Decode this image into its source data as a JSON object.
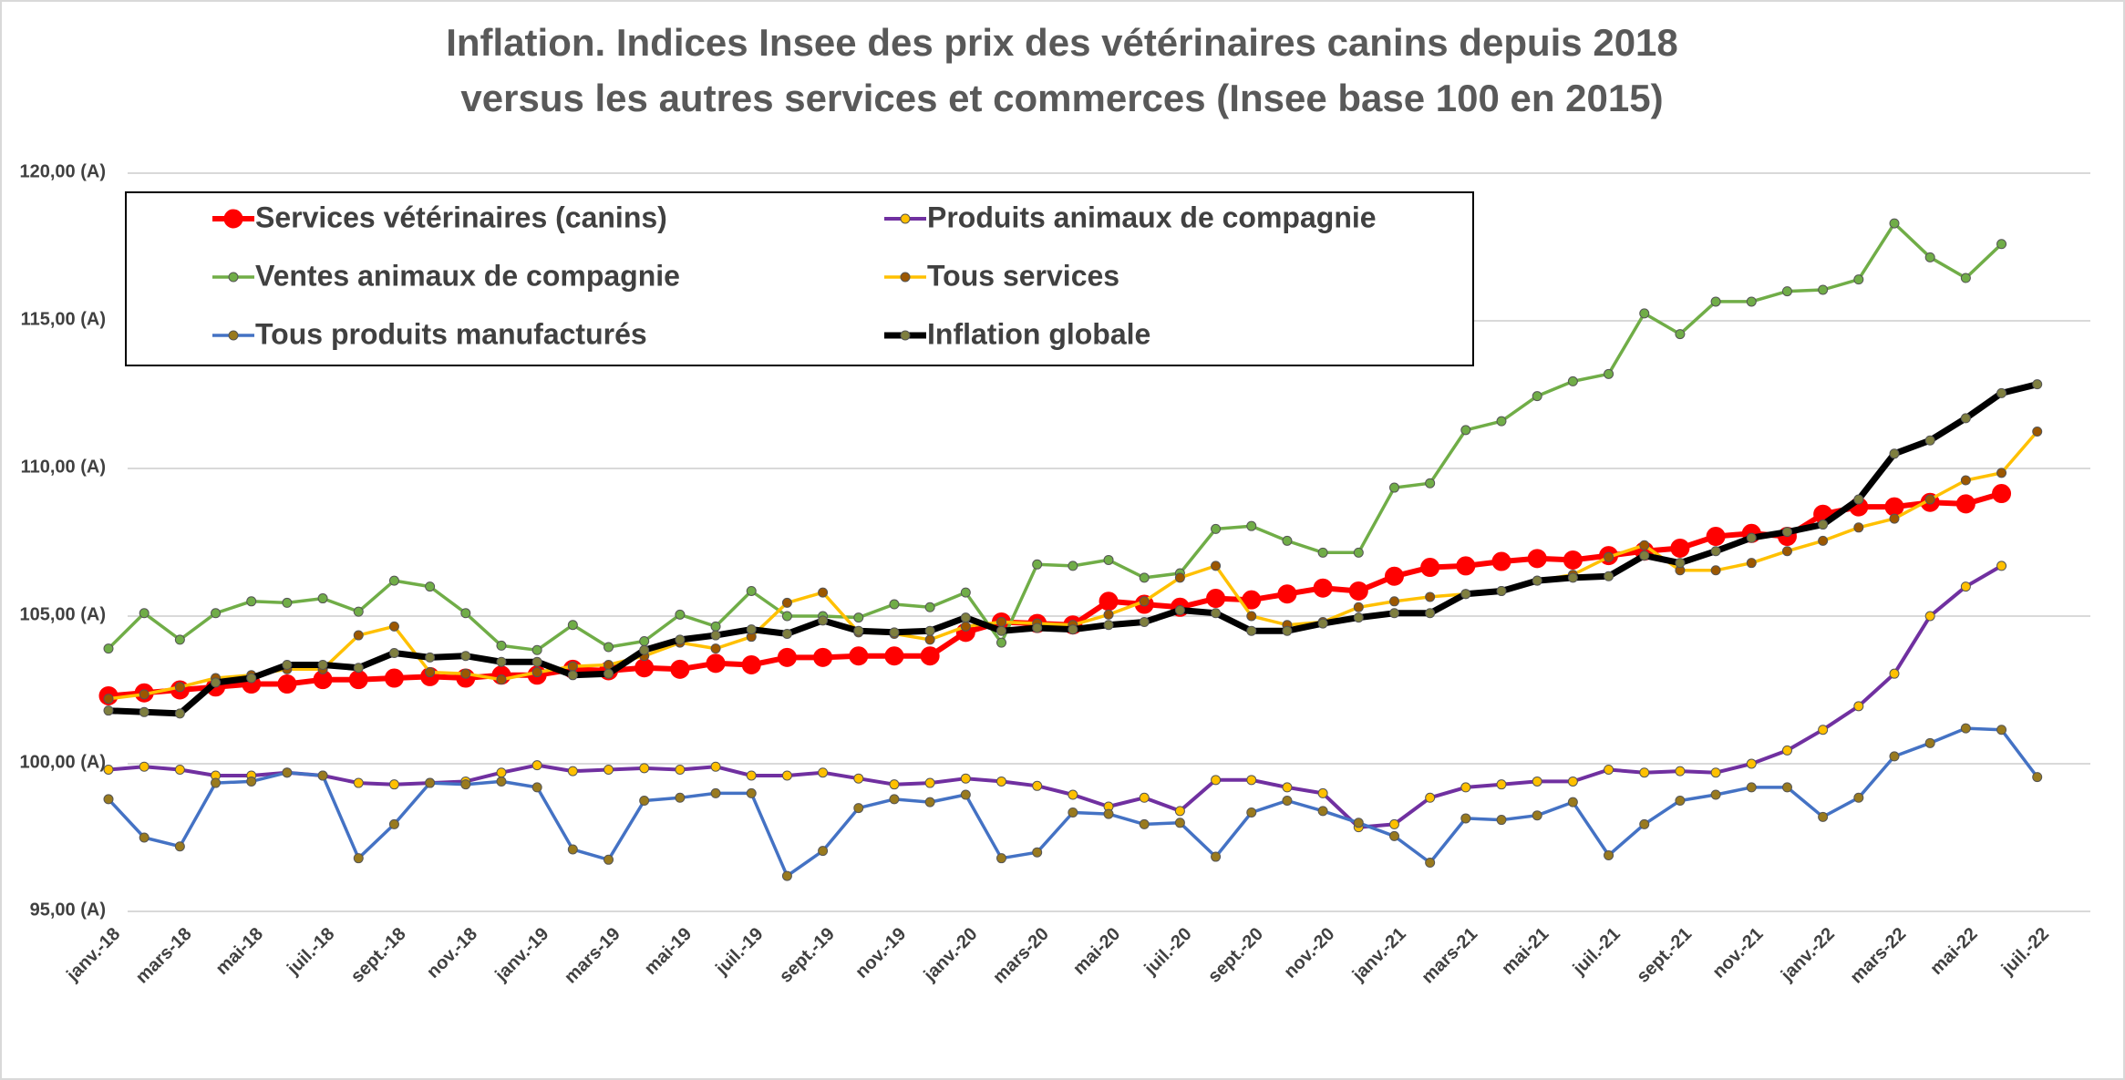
{
  "chart_data": {
    "type": "line",
    "title": [
      "Inflation. Indices Insee des prix des vétérinaires canins depuis 2018",
      "versus les autres services et commerces (Insee base 100 en 2015)"
    ],
    "categories": [
      "janv.-18",
      null,
      "mars-18",
      null,
      "mai-18",
      null,
      "juil.-18",
      null,
      "sept.-18",
      null,
      "nov.-18",
      null,
      "janv.-19",
      null,
      "mars-19",
      null,
      "mai-19",
      null,
      "juil.-19",
      null,
      "sept.-19",
      null,
      "nov.-19",
      null,
      "janv.-20",
      null,
      "mars-20",
      null,
      "mai-20",
      null,
      "juil.-20",
      null,
      "sept.-20",
      null,
      "nov.-20",
      null,
      "janv.-21",
      null,
      "mars-21",
      null,
      "mai-21",
      null,
      "juil.-21",
      null,
      "sept.-21",
      null,
      "nov.-21",
      null,
      "janv.-22",
      null,
      "mars-22",
      null,
      "mai-22",
      null,
      "juil.-22"
    ],
    "ylim": [
      95,
      120
    ],
    "yticks": [
      {
        "value": 95,
        "label": "95,00 (A)"
      },
      {
        "value": 100,
        "label": "100,00 (A)"
      },
      {
        "value": 105,
        "label": "105,00 (A)"
      },
      {
        "value": 110,
        "label": "110,00 (A)"
      },
      {
        "value": 115,
        "label": "115,00 (A)"
      },
      {
        "value": 120,
        "label": "120,00 (A)"
      }
    ],
    "grid": true,
    "legend": "top-left",
    "series": [
      {
        "name": "Services vétérinaires (canins)",
        "color": "#ff0000",
        "marker_color": "#ff0000",
        "values": [
          102.3,
          102.4,
          102.5,
          102.6,
          102.7,
          102.7,
          102.85,
          102.85,
          102.9,
          102.95,
          102.9,
          103.0,
          103.0,
          103.2,
          103.15,
          103.25,
          103.2,
          103.4,
          103.35,
          103.6,
          103.6,
          103.65,
          103.65,
          103.65,
          104.45,
          104.8,
          104.75,
          104.7,
          105.5,
          105.4,
          105.3,
          105.6,
          105.55,
          105.75,
          105.95,
          105.85,
          106.35,
          106.65,
          106.7,
          106.85,
          106.95,
          106.9,
          107.05,
          107.2,
          107.3,
          107.7,
          107.8,
          107.7,
          108.45,
          108.7,
          108.7,
          108.85,
          108.8,
          109.15,
          null
        ]
      },
      {
        "name": "Produits animaux de compagnie",
        "color": "#7030a0",
        "marker_color": "#ffc000",
        "values": [
          99.8,
          99.9,
          99.8,
          99.6,
          99.6,
          99.7,
          99.6,
          99.35,
          99.3,
          99.35,
          99.4,
          99.7,
          99.95,
          99.75,
          99.8,
          99.85,
          99.8,
          99.9,
          99.6,
          99.6,
          99.7,
          99.5,
          99.3,
          99.35,
          99.5,
          99.4,
          99.25,
          98.95,
          98.55,
          98.85,
          98.4,
          99.45,
          99.45,
          99.2,
          99.0,
          97.85,
          97.95,
          98.85,
          99.2,
          99.3,
          99.4,
          99.4,
          99.8,
          99.7,
          99.75,
          99.7,
          100.0,
          100.45,
          101.15,
          101.95,
          103.05,
          105.0,
          106.0,
          106.7,
          null
        ]
      },
      {
        "name": "Ventes animaux de compagnie",
        "color": "#70ad47",
        "marker_color": "#70ad47",
        "values": [
          103.9,
          105.1,
          104.2,
          105.1,
          105.5,
          105.45,
          105.6,
          105.15,
          106.2,
          106.0,
          105.1,
          104.0,
          103.85,
          104.7,
          103.95,
          104.15,
          105.05,
          104.65,
          105.85,
          105.0,
          105.0,
          104.95,
          105.4,
          105.3,
          105.8,
          104.1,
          106.75,
          106.7,
          106.9,
          106.3,
          106.45,
          107.95,
          108.05,
          107.55,
          107.15,
          107.15,
          109.35,
          109.5,
          111.3,
          111.6,
          112.45,
          112.95,
          113.2,
          115.25,
          114.55,
          115.65,
          115.65,
          116.0,
          116.05,
          116.4,
          118.3,
          117.15,
          116.45,
          117.6,
          null
        ]
      },
      {
        "name": "Tous services",
        "color": "#ffc000",
        "marker_color": "#9c5700",
        "values": [
          102.2,
          102.35,
          102.6,
          102.9,
          103.0,
          103.2,
          103.2,
          104.35,
          104.65,
          103.1,
          103.05,
          102.85,
          103.1,
          103.3,
          103.35,
          103.65,
          104.1,
          103.9,
          104.3,
          105.45,
          105.8,
          104.45,
          104.4,
          104.2,
          104.65,
          104.8,
          104.75,
          104.7,
          105.05,
          105.5,
          106.3,
          106.7,
          105.0,
          104.7,
          104.8,
          105.3,
          105.5,
          105.65,
          105.75,
          105.85,
          106.2,
          106.4,
          107.0,
          107.4,
          106.55,
          106.55,
          106.8,
          107.2,
          107.55,
          108.0,
          108.3,
          108.95,
          109.6,
          109.85,
          111.25
        ]
      },
      {
        "name": "Tous produits manufacturés",
        "color": "#4472c4",
        "marker_color": "#997a1e",
        "values": [
          98.8,
          97.5,
          97.2,
          99.35,
          99.4,
          99.7,
          99.6,
          96.8,
          97.95,
          99.35,
          99.3,
          99.4,
          99.2,
          97.1,
          96.75,
          98.75,
          98.85,
          99.0,
          99.0,
          96.2,
          97.05,
          98.5,
          98.8,
          98.7,
          98.95,
          96.8,
          97.0,
          98.35,
          98.3,
          97.95,
          98.0,
          96.85,
          98.35,
          98.75,
          98.4,
          98.0,
          97.55,
          96.65,
          98.15,
          98.1,
          98.25,
          98.7,
          96.9,
          97.95,
          98.75,
          98.95,
          99.2,
          99.2,
          98.2,
          98.85,
          100.25,
          100.7,
          101.2,
          101.15,
          99.55
        ]
      },
      {
        "name": "Inflation globale",
        "color": "#000000",
        "marker_color": "#7f7f3f",
        "values": [
          101.8,
          101.75,
          101.7,
          102.75,
          102.9,
          103.35,
          103.35,
          103.25,
          103.75,
          103.6,
          103.65,
          103.45,
          103.45,
          103.0,
          103.05,
          103.85,
          104.2,
          104.35,
          104.55,
          104.4,
          104.85,
          104.5,
          104.45,
          104.5,
          104.95,
          104.5,
          104.6,
          104.55,
          104.7,
          104.8,
          105.2,
          105.1,
          104.5,
          104.5,
          104.75,
          104.95,
          105.1,
          105.1,
          105.75,
          105.85,
          106.2,
          106.3,
          106.35,
          107.05,
          106.8,
          107.2,
          107.65,
          107.85,
          108.1,
          108.95,
          110.5,
          110.95,
          111.7,
          112.55,
          112.85
        ]
      }
    ]
  }
}
